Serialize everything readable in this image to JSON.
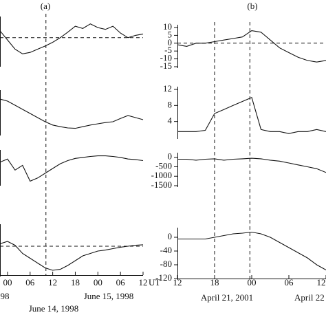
{
  "chart_data": [
    {
      "type": "line",
      "title": "(a)",
      "x": [
        -2,
        0,
        2,
        4,
        6,
        8,
        10,
        12,
        14,
        16,
        18,
        20,
        22,
        24,
        26,
        28,
        30,
        32,
        34,
        36
      ],
      "values": [
        75,
        55,
        35,
        25,
        28,
        35,
        42,
        50,
        60,
        72,
        85,
        80,
        90,
        82,
        78,
        85,
        70,
        60,
        65,
        68
      ],
      "xlim": [
        -2,
        36
      ],
      "ylim": [
        0,
        100
      ],
      "hline": 60,
      "vlines": [
        10.2
      ]
    },
    {
      "type": "line",
      "x": [
        -2,
        0,
        2,
        4,
        6,
        8,
        10,
        12,
        14,
        16,
        18,
        20,
        22,
        24,
        26,
        28,
        30,
        32,
        34,
        36
      ],
      "values": [
        85,
        80,
        70,
        60,
        50,
        40,
        30,
        22,
        18,
        15,
        14,
        18,
        22,
        25,
        28,
        30,
        38,
        45,
        40,
        35
      ],
      "xlim": [
        -2,
        36
      ],
      "ylim": [
        0,
        100
      ]
    },
    {
      "type": "line",
      "x": [
        -2,
        0,
        2,
        4,
        6,
        8,
        10,
        12,
        14,
        16,
        18,
        20,
        22,
        24,
        26,
        28,
        30,
        32,
        34,
        36
      ],
      "values": [
        70,
        80,
        45,
        60,
        10,
        20,
        35,
        50,
        65,
        75,
        82,
        85,
        88,
        90,
        90,
        88,
        85,
        80,
        78,
        75
      ],
      "xlim": [
        -2,
        36
      ],
      "ylim": [
        0,
        100
      ]
    },
    {
      "type": "line",
      "x": [
        -2,
        0,
        2,
        4,
        6,
        8,
        10,
        12,
        14,
        16,
        18,
        20,
        22,
        24,
        26,
        28,
        30,
        32,
        34,
        36
      ],
      "values": [
        65,
        70,
        62,
        45,
        35,
        25,
        15,
        10,
        12,
        20,
        30,
        40,
        45,
        50,
        52,
        55,
        58,
        60,
        62,
        63
      ],
      "xlim": [
        -2,
        36
      ],
      "ylim": [
        0,
        100
      ],
      "hline": 60,
      "xticks": [
        {
          "value": 0,
          "label": "00"
        },
        {
          "value": 6,
          "label": "06"
        },
        12,
        18,
        {
          "value": 24,
          "label": "00"
        },
        {
          "value": 30,
          "label": "06"
        },
        {
          "value": 36,
          "label": "12"
        }
      ],
      "xlabel": "UT",
      "annotations": [
        "998",
        "June 14, 1998",
        "June 15, 1998"
      ]
    },
    {
      "type": "line",
      "title": "(b)",
      "x": [
        12,
        13.5,
        15,
        16.5,
        18,
        19.5,
        21,
        22.5,
        24,
        25.5,
        27,
        28.5,
        30,
        31.5,
        33,
        34.5,
        36
      ],
      "values": [
        -1,
        -2,
        0,
        0,
        1,
        2,
        3,
        4,
        8,
        7,
        2,
        -3,
        -6,
        -9,
        -11,
        -12,
        -11
      ],
      "xlim": [
        12,
        36
      ],
      "ylim": [
        -15,
        10
      ],
      "yticks": [
        10,
        5,
        0,
        -5,
        -10,
        -15
      ],
      "hline": 0,
      "vlines": [
        18,
        23.7
      ]
    },
    {
      "type": "line",
      "x": [
        12,
        13.5,
        15,
        16.5,
        18,
        19.5,
        21,
        22.5,
        24,
        25.5,
        27,
        28.5,
        30,
        31.5,
        33,
        34.5,
        36
      ],
      "values": [
        1.5,
        1.5,
        1.5,
        1.8,
        6,
        7,
        8,
        9,
        10,
        2,
        1.5,
        1.5,
        1,
        1.5,
        1.5,
        2,
        1.5
      ],
      "xlim": [
        12,
        36
      ],
      "ylim": [
        0,
        12
      ],
      "yticks": [
        12,
        8,
        4
      ]
    },
    {
      "type": "line",
      "x": [
        12,
        13.5,
        15,
        16.5,
        18,
        19.5,
        21,
        22.5,
        24,
        25.5,
        27,
        28.5,
        30,
        31.5,
        33,
        34.5,
        36
      ],
      "values": [
        -100,
        -100,
        -150,
        -100,
        -80,
        -150,
        -100,
        -80,
        -50,
        -80,
        -150,
        -200,
        -300,
        -400,
        -500,
        -600,
        -800
      ],
      "xlim": [
        12,
        36
      ],
      "ylim": [
        -1500,
        100
      ],
      "yticks": [
        0,
        -500,
        -1000,
        -1500
      ]
    },
    {
      "type": "line",
      "x": [
        12,
        13.5,
        15,
        16.5,
        18,
        19.5,
        21,
        22.5,
        24,
        25.5,
        27,
        28.5,
        30,
        31.5,
        33,
        34.5,
        36
      ],
      "values": [
        -5,
        -5,
        -5,
        -5,
        0,
        5,
        10,
        12,
        15,
        10,
        0,
        -15,
        -30,
        -45,
        -60,
        -80,
        -95
      ],
      "xlim": [
        12,
        36
      ],
      "ylim": [
        -120,
        20
      ],
      "yticks": [
        0,
        -40,
        -80,
        -120
      ],
      "xticks": [
        12,
        18,
        {
          "value": 24,
          "label": "00"
        },
        {
          "value": 30,
          "label": "06"
        },
        {
          "value": 36,
          "label": "12"
        }
      ],
      "annotations": [
        "April 21, 2001",
        "April 22"
      ]
    }
  ]
}
